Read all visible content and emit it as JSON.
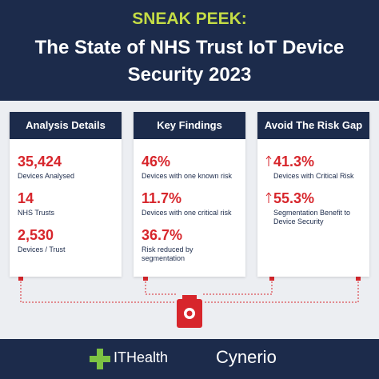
{
  "header": {
    "kicker": "SNEAK PEEK:",
    "title_lines": [
      "The State of NHS Trust IoT Device",
      "Security 2023"
    ]
  },
  "cards": [
    {
      "title": "Analysis Details",
      "items": [
        {
          "value": "35,424",
          "label": "Devices Analysed"
        },
        {
          "value": "14",
          "label": "NHS Trusts"
        },
        {
          "value": "2,530",
          "label": "Devices / Trust"
        }
      ]
    },
    {
      "title": "Key Findings",
      "items": [
        {
          "value": "46%",
          "label": "Devices with one known risk"
        },
        {
          "value": "11.7%",
          "label": "Devices with one critical risk"
        },
        {
          "value": "36.7%",
          "label": "Risk reduced by segmentation"
        }
      ]
    },
    {
      "title": "Avoid The Risk Gap",
      "items": [
        {
          "value": "41.3%",
          "label": "Devices with Critical Risk"
        },
        {
          "value": "55.3%",
          "label": "Segmentation Benefit to Device Security"
        }
      ]
    }
  ],
  "footer": {
    "logos": [
      "ITHealth",
      "Cynerio"
    ]
  }
}
